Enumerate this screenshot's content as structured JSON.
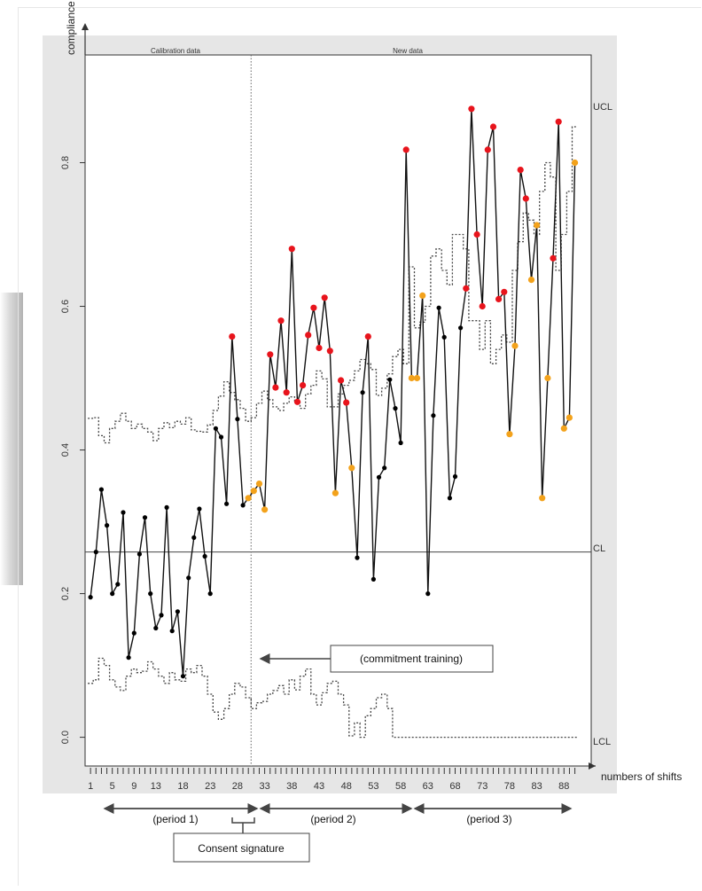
{
  "chart_data": {
    "type": "line",
    "ylabel": "compliance",
    "xlabel": "numbers of shifts",
    "ylim": [
      -0.04,
      0.95
    ],
    "xlim": [
      0,
      93
    ],
    "yticks": [
      0.0,
      0.2,
      0.4,
      0.6,
      0.8
    ],
    "ytick_labels": [
      "0.0",
      "0.2",
      "0.4",
      "0.6",
      "0.8"
    ],
    "xticks": [
      1,
      5,
      9,
      13,
      18,
      23,
      28,
      33,
      38,
      43,
      48,
      53,
      58,
      63,
      68,
      73,
      78,
      83,
      88
    ],
    "xtick_labels": [
      "1",
      "5",
      "9",
      "13",
      "18",
      "23",
      "28",
      "33",
      "38",
      "43",
      "48",
      "53",
      "58",
      "63",
      "68",
      "73",
      "78",
      "83",
      "88"
    ],
    "section_labels": {
      "calibration": "Calibration data",
      "new": "New data"
    },
    "split_x": 30.5,
    "center_line": {
      "label": "CL",
      "value": 0.258
    },
    "ucl_label": "UCL",
    "lcl_label": "LCL",
    "grid": false,
    "series": [
      {
        "x": [
          1,
          2,
          3,
          4,
          5,
          6,
          7,
          8,
          9,
          10,
          11,
          12,
          13,
          14,
          15,
          16,
          17,
          18,
          19,
          20,
          21,
          22,
          23,
          24,
          25,
          26,
          27,
          28,
          29,
          30,
          31,
          32,
          33,
          34,
          35,
          36,
          37,
          38,
          39,
          40,
          41,
          42,
          43,
          44,
          45,
          46,
          47,
          48,
          49,
          50,
          51,
          52,
          53,
          54,
          55,
          56,
          57,
          58,
          59,
          60,
          61,
          62,
          63,
          64,
          65,
          66,
          67,
          68,
          69,
          70,
          71,
          72,
          73,
          74,
          75,
          76,
          77,
          78,
          79,
          80,
          81,
          82,
          83,
          84,
          85,
          86,
          87,
          88,
          89,
          90
        ],
        "y": [
          0.195,
          0.258,
          0.345,
          0.295,
          0.2,
          0.213,
          0.313,
          0.111,
          0.145,
          0.255,
          0.306,
          0.2,
          0.152,
          0.17,
          0.32,
          0.148,
          0.175,
          0.085,
          0.222,
          0.278,
          0.318,
          0.252,
          0.2,
          0.43,
          0.418,
          0.325,
          0.558,
          0.443,
          0.323,
          0.333,
          0.343,
          0.353,
          0.317,
          0.533,
          0.487,
          0.58,
          0.48,
          0.68,
          0.467,
          0.49,
          0.56,
          0.598,
          0.542,
          0.612,
          0.538,
          0.34,
          0.497,
          0.466,
          0.375,
          0.25,
          0.48,
          0.558,
          0.22,
          0.362,
          0.375,
          0.498,
          0.458,
          0.41,
          0.818,
          0.5,
          0.5,
          0.615,
          0.2,
          0.448,
          0.598,
          0.557,
          0.333,
          0.363,
          0.57,
          0.625,
          0.875,
          0.7,
          0.6,
          0.818,
          0.85,
          0.61,
          0.62,
          0.422,
          0.545,
          0.79,
          0.75,
          0.637,
          0.713,
          0.333,
          0.5,
          0.667,
          0.857,
          0.43,
          0.445,
          0.8
        ],
        "marker_colors": [
          "black",
          "black",
          "black",
          "black",
          "black",
          "black",
          "black",
          "black",
          "black",
          "black",
          "black",
          "black",
          "black",
          "black",
          "black",
          "black",
          "black",
          "black",
          "black",
          "black",
          "black",
          "black",
          "black",
          "black",
          "black",
          "black",
          "red",
          "black",
          "black",
          "orange",
          "orange",
          "orange",
          "orange",
          "red",
          "red",
          "red",
          "red",
          "red",
          "red",
          "red",
          "red",
          "red",
          "red",
          "red",
          "red",
          "orange",
          "red",
          "red",
          "orange",
          "black",
          "black",
          "red",
          "black",
          "black",
          "black",
          "black",
          "black",
          "black",
          "red",
          "orange",
          "orange",
          "orange",
          "black",
          "black",
          "black",
          "black",
          "black",
          "black",
          "black",
          "red",
          "red",
          "red",
          "red",
          "red",
          "red",
          "red",
          "red",
          "orange",
          "orange",
          "red",
          "red",
          "orange",
          "orange",
          "orange",
          "orange",
          "red",
          "red",
          "orange",
          "orange",
          "orange"
        ]
      }
    ],
    "ucl": [
      0.444,
      0.445,
      0.42,
      0.41,
      0.43,
      0.44,
      0.451,
      0.44,
      0.43,
      0.436,
      0.43,
      0.425,
      0.413,
      0.43,
      0.438,
      0.431,
      0.44,
      0.436,
      0.445,
      0.428,
      0.426,
      0.425,
      0.435,
      0.455,
      0.475,
      0.495,
      0.48,
      0.47,
      0.458,
      0.44,
      0.445,
      0.465,
      0.482,
      0.47,
      0.46,
      0.455,
      0.465,
      0.474,
      0.468,
      0.458,
      0.478,
      0.49,
      0.51,
      0.499,
      0.46,
      0.46,
      0.478,
      0.49,
      0.497,
      0.51,
      0.526,
      0.52,
      0.512,
      0.476,
      0.486,
      0.506,
      0.53,
      0.54,
      0.52,
      0.655,
      0.57,
      0.578,
      0.6,
      0.67,
      0.68,
      0.65,
      0.63,
      0.7,
      0.7,
      0.68,
      0.58,
      0.58,
      0.54,
      0.58,
      0.52,
      0.54,
      0.56,
      0.55,
      0.65,
      0.69,
      0.73,
      0.72,
      0.7,
      0.76,
      0.8,
      0.78,
      0.65,
      0.7,
      0.76,
      0.85
    ],
    "lcl": [
      0.075,
      0.08,
      0.11,
      0.1,
      0.08,
      0.07,
      0.065,
      0.085,
      0.095,
      0.09,
      0.092,
      0.105,
      0.095,
      0.085,
      0.075,
      0.09,
      0.08,
      0.078,
      0.095,
      0.09,
      0.1,
      0.085,
      0.06,
      0.035,
      0.025,
      0.04,
      0.06,
      0.075,
      0.07,
      0.055,
      0.04,
      0.048,
      0.05,
      0.06,
      0.065,
      0.072,
      0.06,
      0.08,
      0.066,
      0.085,
      0.095,
      0.06,
      0.045,
      0.062,
      0.075,
      0.078,
      0.06,
      0.045,
      0.002,
      0.02,
      0.0,
      0.03,
      0.04,
      0.055,
      0.06,
      0.04,
      0.0,
      0.0,
      0.0,
      0.0,
      0.0,
      0.0,
      0.0,
      0.0,
      0.0,
      0.0,
      0.0,
      0.0,
      0.0,
      0.0,
      0.0,
      0.0,
      0.0,
      0.0,
      0.0,
      0.0,
      0.0,
      0.0,
      0.0,
      0.0,
      0.0,
      0.0,
      0.0,
      0.0,
      0.0,
      0.0,
      0.0,
      0.0,
      0.0,
      0.0
    ],
    "annotations": {
      "commitment": {
        "text": "(commitment training)",
        "x": 30.5,
        "y": 0.115
      },
      "consent": {
        "text": "Consent signature"
      },
      "periods": [
        {
          "label": "(period 1)",
          "from": 1,
          "to": 30.5
        },
        {
          "label": "(period 2)",
          "from": 30.5,
          "to": 59.5
        },
        {
          "label": "(period 3)",
          "from": 59.5,
          "to": 90
        }
      ]
    }
  },
  "colors": {
    "panel_bg": "#e6e6e6",
    "plot_bg": "#ffffff",
    "red_marker": "#e8141c",
    "orange_marker": "#f3a21b",
    "black_marker": "#000000"
  }
}
